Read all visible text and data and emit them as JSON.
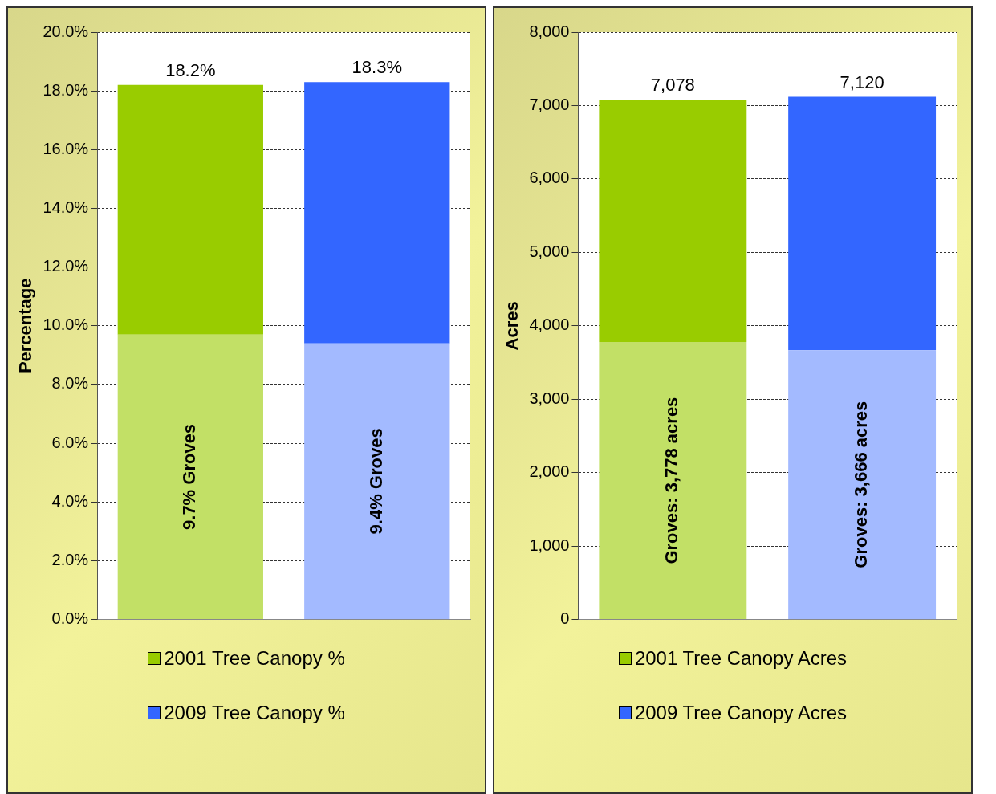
{
  "chart_data": [
    {
      "type": "bar",
      "stacked": true,
      "categories": [
        null,
        null
      ],
      "ylabel": "Percentage",
      "ylim": [
        0,
        20
      ],
      "yticks": [
        {
          "value": 0,
          "label": "0.0%"
        },
        {
          "value": 2,
          "label": "2.0%"
        },
        {
          "value": 4,
          "label": "4.0%"
        },
        {
          "value": 6,
          "label": "6.0%"
        },
        {
          "value": 8,
          "label": "8.0%"
        },
        {
          "value": 10,
          "label": "10.0%"
        },
        {
          "value": 12,
          "label": "12.0%"
        },
        {
          "value": 14,
          "label": "14.0%"
        },
        {
          "value": 16,
          "label": "16.0%"
        },
        {
          "value": 18,
          "label": "18.0%"
        },
        {
          "value": 20,
          "label": "20.0%"
        }
      ],
      "grid": "y",
      "line_style": "dashed",
      "legend": "bottom",
      "totals": [
        "18.2%",
        "18.3%"
      ],
      "series": [
        {
          "color": "#c2e066",
          "values": [
            9.7,
            null
          ],
          "value_labels": [
            "9.7% Groves",
            null
          ]
        },
        {
          "name": "2001 Tree Canopy %",
          "color": "#99cc00",
          "values": [
            8.5,
            null
          ]
        },
        {
          "color": "#a3baff",
          "values": [
            null,
            9.4
          ],
          "value_labels": [
            null,
            "9.4% Groves"
          ]
        },
        {
          "name": "2009 Tree Canopy %",
          "color": "#3366ff",
          "values": [
            null,
            8.9
          ]
        }
      ]
    },
    {
      "type": "bar",
      "stacked": true,
      "categories": [
        null,
        null
      ],
      "ylabel": "Acres",
      "ylim": [
        0,
        8000
      ],
      "yticks": [
        0,
        {
          "value": 1000,
          "label": "1,000"
        },
        {
          "value": 2000,
          "label": "2,000"
        },
        {
          "value": 3000,
          "label": "3,000"
        },
        {
          "value": 4000,
          "label": "4,000"
        },
        {
          "value": 5000,
          "label": "5,000"
        },
        {
          "value": 6000,
          "label": "6,000"
        },
        {
          "value": 7000,
          "label": "7,000"
        },
        {
          "value": 8000,
          "label": "8,000"
        }
      ],
      "grid": "y",
      "line_style": "dashed",
      "legend": "bottom",
      "totals": [
        "7,078",
        "7,120"
      ],
      "series": [
        {
          "color": "#c2e066",
          "values": [
            3778,
            null
          ],
          "value_labels": [
            "Groves: 3,778 acres",
            null
          ]
        },
        {
          "name": "2001 Tree Canopy Acres",
          "color": "#99cc00",
          "values": [
            3300,
            null
          ]
        },
        {
          "color": "#a3baff",
          "values": [
            null,
            3666
          ],
          "value_labels": [
            null,
            "Groves: 3,666 acres"
          ]
        },
        {
          "name": "2009 Tree Canopy Acres",
          "color": "#3366ff",
          "values": [
            null,
            3454
          ]
        }
      ]
    }
  ]
}
